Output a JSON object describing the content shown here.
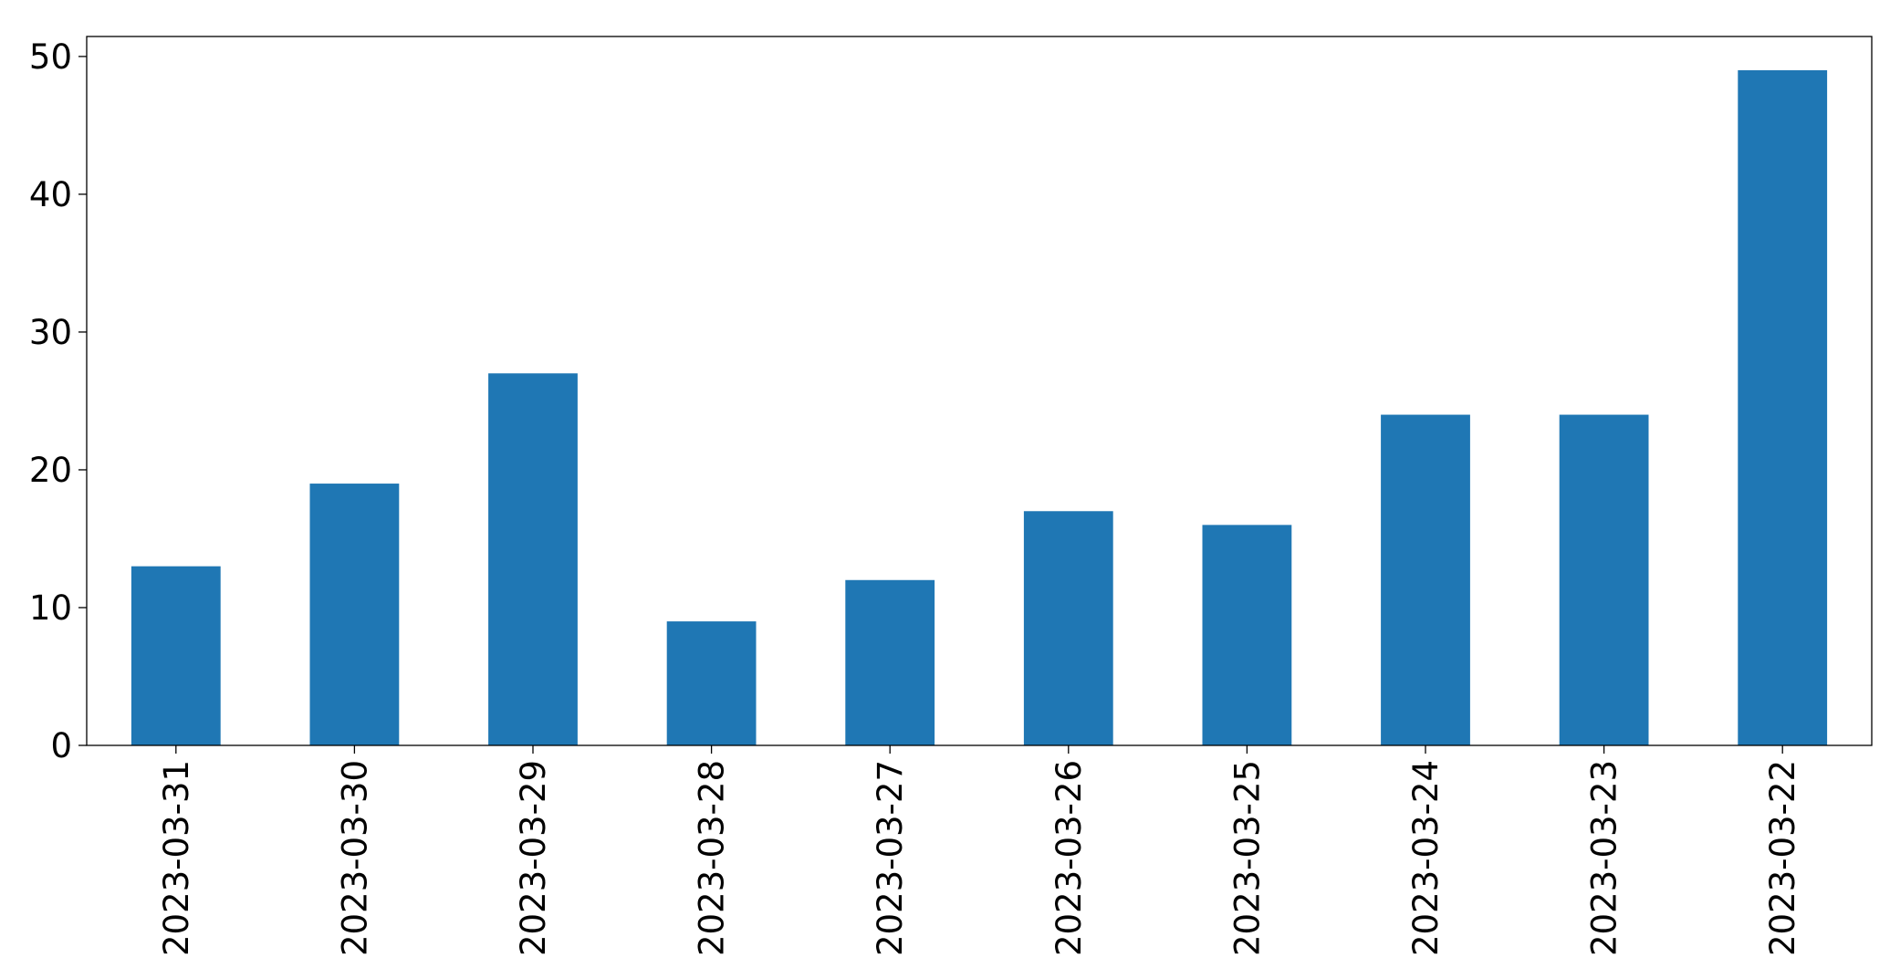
{
  "chart_data": {
    "type": "bar",
    "categories": [
      "2023-03-31",
      "2023-03-30",
      "2023-03-29",
      "2023-03-28",
      "2023-03-27",
      "2023-03-26",
      "2023-03-25",
      "2023-03-24",
      "2023-03-23",
      "2023-03-22"
    ],
    "values": [
      13,
      19,
      27,
      9,
      12,
      17,
      16,
      24,
      24,
      49
    ],
    "color": "#1f77b4",
    "ylim": [
      0,
      51.45
    ],
    "yticks": [
      0,
      10,
      20,
      30,
      40,
      50
    ],
    "grid": false
  }
}
